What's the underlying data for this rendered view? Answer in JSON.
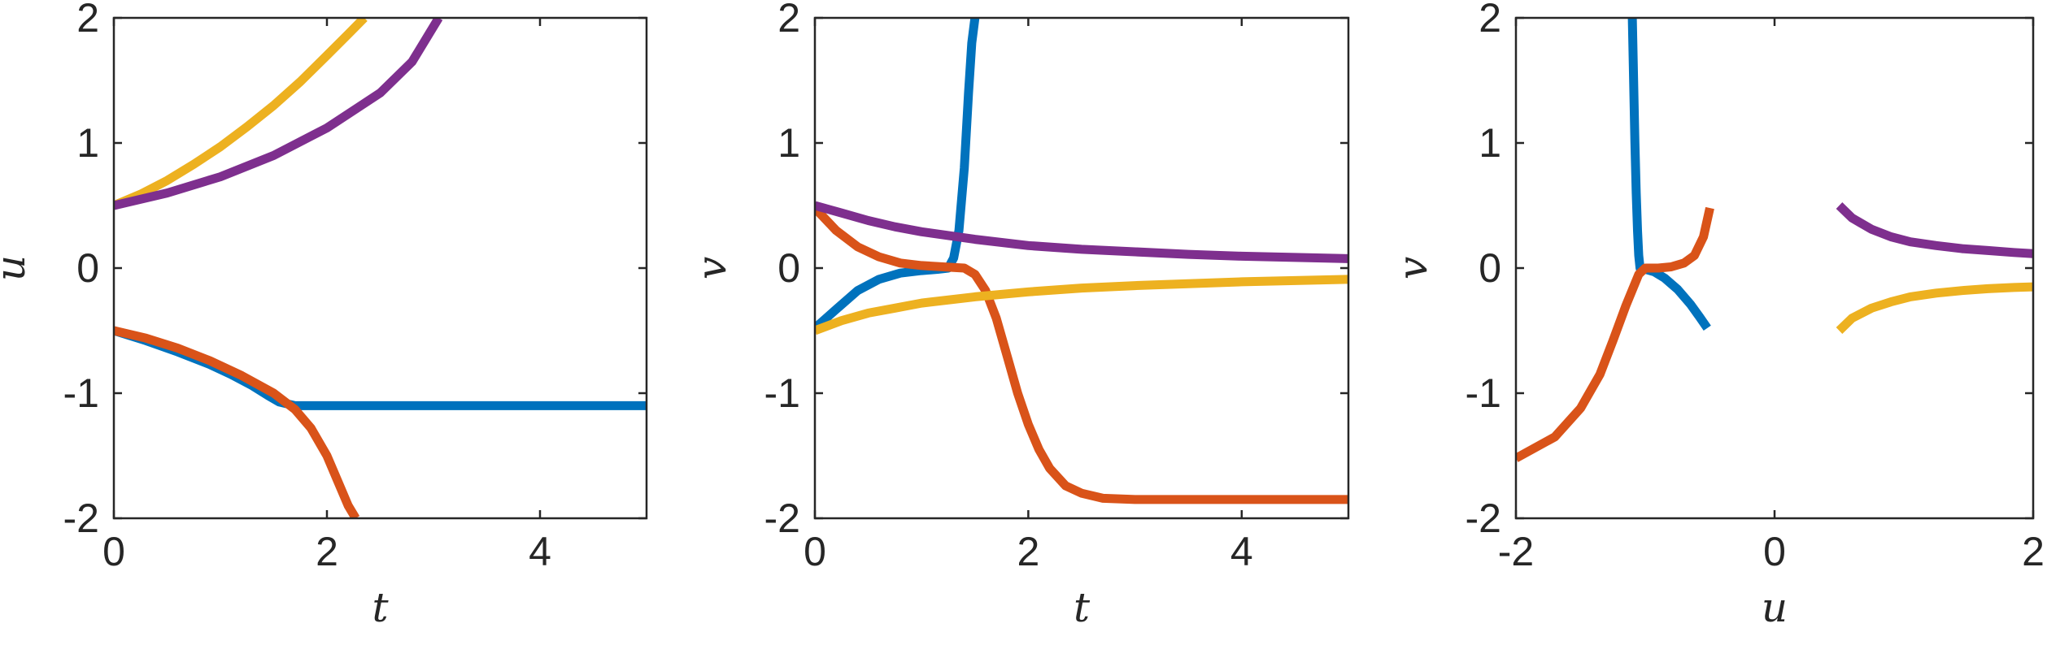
{
  "chart_data": [
    {
      "type": "line",
      "xlabel": "t",
      "ylabel": "u",
      "xlim": [
        0,
        5
      ],
      "ylim": [
        -2,
        2
      ],
      "xticks": [
        0,
        2,
        4
      ],
      "xtick_labels": [
        "0",
        "2",
        "4"
      ],
      "yticks": [
        -2,
        -1,
        0,
        1,
        2
      ],
      "ytick_labels": [
        "-2",
        "-1",
        "0",
        "1",
        "2"
      ],
      "grid": false,
      "series": [
        {
          "color": "#0072BD",
          "x": [
            0,
            0.3,
            0.6,
            0.9,
            1.1,
            1.3,
            1.45,
            1.55,
            1.7,
            2.0,
            3.0,
            4.0,
            5.0
          ],
          "y": [
            -0.5,
            -0.58,
            -0.67,
            -0.77,
            -0.85,
            -0.94,
            -1.02,
            -1.07,
            -1.1,
            -1.1,
            -1.1,
            -1.1,
            -1.1
          ]
        },
        {
          "color": "#D95319",
          "x": [
            0,
            0.3,
            0.6,
            0.9,
            1.2,
            1.5,
            1.7,
            1.85,
            2.0,
            2.1,
            2.2,
            2.27
          ],
          "y": [
            -0.5,
            -0.56,
            -0.64,
            -0.74,
            -0.86,
            -1.0,
            -1.13,
            -1.28,
            -1.5,
            -1.7,
            -1.9,
            -2.0
          ]
        },
        {
          "color": "#EDB120",
          "x": [
            0,
            0.25,
            0.5,
            0.75,
            1.0,
            1.25,
            1.5,
            1.75,
            2.0,
            2.2,
            2.35
          ],
          "y": [
            0.5,
            0.59,
            0.7,
            0.83,
            0.97,
            1.13,
            1.3,
            1.49,
            1.7,
            1.87,
            2.0
          ]
        },
        {
          "color": "#7E2F8E",
          "x": [
            0,
            0.5,
            1.0,
            1.5,
            2.0,
            2.5,
            2.8,
            3.05
          ],
          "y": [
            0.5,
            0.6,
            0.73,
            0.9,
            1.12,
            1.4,
            1.65,
            2.0
          ]
        }
      ]
    },
    {
      "type": "line",
      "xlabel": "t",
      "ylabel": "v",
      "xlim": [
        0,
        5
      ],
      "ylim": [
        -2,
        2
      ],
      "xticks": [
        0,
        2,
        4
      ],
      "xtick_labels": [
        "0",
        "2",
        "4"
      ],
      "yticks": [
        -2,
        -1,
        0,
        1,
        2
      ],
      "ytick_labels": [
        "-2",
        "-1",
        "0",
        "1",
        "2"
      ],
      "grid": false,
      "series": [
        {
          "color": "#0072BD",
          "x": [
            0,
            0.2,
            0.4,
            0.6,
            0.8,
            1.0,
            1.15,
            1.25,
            1.3,
            1.35,
            1.4,
            1.44,
            1.47,
            1.5
          ],
          "y": [
            -0.48,
            -0.33,
            -0.18,
            -0.09,
            -0.04,
            -0.02,
            -0.01,
            0.0,
            0.08,
            0.3,
            0.8,
            1.4,
            1.8,
            2.0
          ]
        },
        {
          "color": "#D95319",
          "x": [
            0,
            0.2,
            0.4,
            0.6,
            0.8,
            1.0,
            1.2,
            1.4,
            1.5,
            1.6,
            1.7,
            1.8,
            1.9,
            2.0,
            2.1,
            2.2,
            2.35,
            2.5,
            2.7,
            3.0,
            3.5,
            4.0,
            5.0
          ],
          "y": [
            0.48,
            0.3,
            0.17,
            0.09,
            0.04,
            0.02,
            0.01,
            0.0,
            -0.05,
            -0.18,
            -0.4,
            -0.7,
            -1.0,
            -1.25,
            -1.45,
            -1.6,
            -1.74,
            -1.8,
            -1.84,
            -1.85,
            -1.85,
            -1.85,
            -1.85
          ]
        },
        {
          "color": "#EDB120",
          "x": [
            0,
            0.25,
            0.5,
            0.75,
            1.0,
            1.5,
            2.0,
            2.5,
            3.0,
            3.5,
            4.0,
            4.5,
            5.0
          ],
          "y": [
            -0.5,
            -0.42,
            -0.36,
            -0.32,
            -0.28,
            -0.23,
            -0.19,
            -0.16,
            -0.14,
            -0.125,
            -0.11,
            -0.1,
            -0.09
          ]
        },
        {
          "color": "#7E2F8E",
          "x": [
            0,
            0.25,
            0.5,
            0.75,
            1.0,
            1.5,
            2.0,
            2.5,
            3.0,
            3.5,
            4.0,
            4.5,
            5.0
          ],
          "y": [
            0.5,
            0.44,
            0.38,
            0.33,
            0.29,
            0.23,
            0.18,
            0.15,
            0.13,
            0.11,
            0.095,
            0.085,
            0.075
          ]
        }
      ]
    },
    {
      "type": "line",
      "xlabel": "u",
      "ylabel": "v",
      "xlim": [
        -2,
        2
      ],
      "ylim": [
        -2,
        2
      ],
      "xticks": [
        -2,
        0,
        2
      ],
      "xtick_labels": [
        "-2",
        "0",
        "2"
      ],
      "yticks": [
        -2,
        -1,
        0,
        1,
        2
      ],
      "ytick_labels": [
        "-2",
        "-1",
        "0",
        "1",
        "2"
      ],
      "grid": false,
      "series": [
        {
          "color": "#0072BD",
          "x": [
            -1.1,
            -1.09,
            -1.08,
            -1.07,
            -1.06,
            -1.05,
            -1.04,
            -1.0,
            -0.93,
            -0.85,
            -0.75,
            -0.65,
            -0.58,
            -0.52
          ],
          "y": [
            2.0,
            1.5,
            1.0,
            0.6,
            0.3,
            0.1,
            0.0,
            -0.01,
            -0.03,
            -0.08,
            -0.17,
            -0.29,
            -0.39,
            -0.48
          ]
        },
        {
          "color": "#D95319",
          "x": [
            -2.0,
            -1.7,
            -1.5,
            -1.35,
            -1.25,
            -1.15,
            -1.05,
            -1.0,
            -0.9,
            -0.8,
            -0.7,
            -0.62,
            -0.55,
            -0.5
          ],
          "y": [
            -1.52,
            -1.35,
            -1.12,
            -0.85,
            -0.58,
            -0.3,
            -0.05,
            0.0,
            0.0,
            0.01,
            0.04,
            0.1,
            0.25,
            0.48
          ]
        },
        {
          "color": "#EDB120",
          "x": [
            0.5,
            0.6,
            0.75,
            0.9,
            1.05,
            1.25,
            1.45,
            1.65,
            1.85,
            2.0
          ],
          "y": [
            -0.5,
            -0.4,
            -0.32,
            -0.27,
            -0.23,
            -0.2,
            -0.18,
            -0.165,
            -0.155,
            -0.15
          ]
        },
        {
          "color": "#7E2F8E",
          "x": [
            0.5,
            0.6,
            0.75,
            0.9,
            1.05,
            1.25,
            1.45,
            1.65,
            1.85,
            2.0
          ],
          "y": [
            0.5,
            0.4,
            0.31,
            0.25,
            0.21,
            0.18,
            0.155,
            0.14,
            0.125,
            0.115
          ]
        }
      ]
    }
  ]
}
